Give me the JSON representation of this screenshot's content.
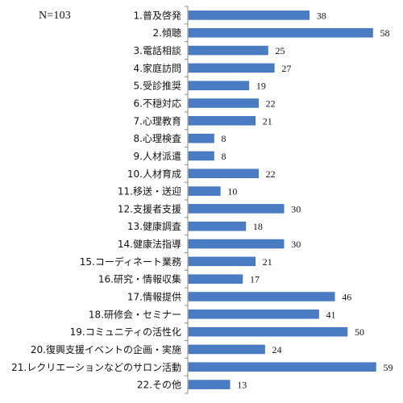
{
  "annotation": "N=103",
  "colors": {
    "bar": "#4a7cc4",
    "bar_edge": "#3a6ab0",
    "axis": "#888888",
    "text": "#111111"
  },
  "chart_data": {
    "type": "bar",
    "orientation": "horizontal",
    "title": "",
    "xlabel": "",
    "ylabel": "",
    "xlim": [
      0,
      60
    ],
    "grid": false,
    "legend": "none",
    "categories": [
      "1.普及啓発",
      "2.傾聴",
      "3.電話相談",
      "4.家庭訪問",
      "5.受診推奨",
      "6.不穏対応",
      "7.心理教育",
      "8.心理検査",
      "9.人材派遣",
      "10.人材育成",
      "11.移送・送迎",
      "12.支援者支援",
      "13.健康調査",
      "14.健康法指導",
      "15.コーディネート業務",
      "16.研究・情報収集",
      "17.情報提供",
      "18.研修会・セミナー",
      "19.コミュニティの活性化",
      "20.復興支援イベントの企画・実施",
      "21.レクリエーションなどのサロン活動",
      "22.その他"
    ],
    "values": [
      38,
      58,
      25,
      27,
      19,
      22,
      21,
      8,
      8,
      22,
      10,
      30,
      18,
      30,
      21,
      17,
      46,
      41,
      50,
      24,
      59,
      13
    ]
  }
}
